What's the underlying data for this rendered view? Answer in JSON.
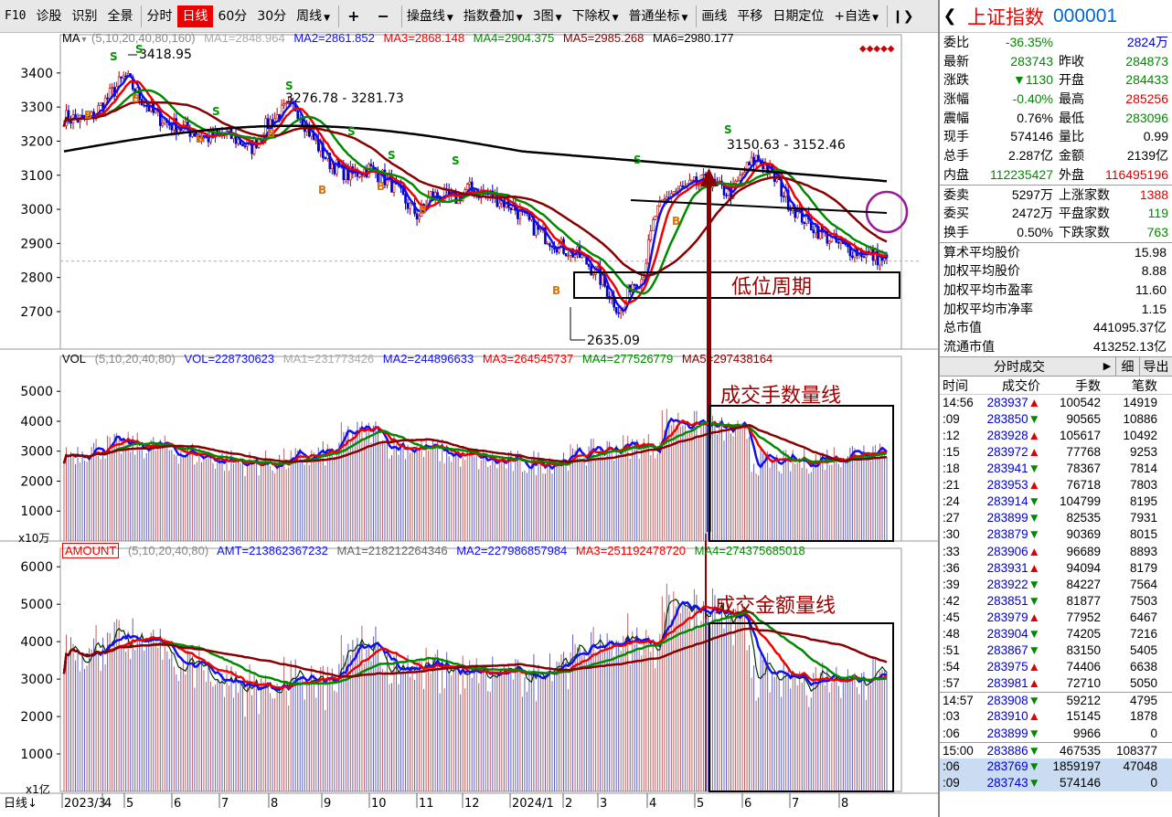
{
  "toolbar": {
    "items": [
      {
        "label": "F10",
        "kind": "f10"
      },
      {
        "label": "诊股"
      },
      {
        "label": "识别"
      },
      {
        "label": "全景"
      },
      {
        "label": "分时",
        "sep": true
      },
      {
        "label": "日线",
        "active": true
      },
      {
        "label": "60分"
      },
      {
        "label": "30分"
      },
      {
        "label": "周线",
        "dropdown": true
      },
      {
        "label": "+",
        "sym": true,
        "sep": true
      },
      {
        "label": "−",
        "sym": true
      },
      {
        "label": "操盘线",
        "dropdown": true,
        "sep": true
      },
      {
        "label": "指数叠加",
        "dropdown": true
      },
      {
        "label": "3图",
        "dropdown": true
      },
      {
        "label": "下除权",
        "dropdown": true
      },
      {
        "label": "普通坐标",
        "dropdown": true
      },
      {
        "label": "画线",
        "sep": true
      },
      {
        "label": "平移"
      },
      {
        "label": "日期定位"
      },
      {
        "label": "+自选",
        "dropdown": true
      },
      {
        "label": "❙❯",
        "sep": true
      }
    ]
  },
  "colors": {
    "ma1": "#d7d7d7",
    "ma2": "#1010f0",
    "ma3": "#f00000",
    "ma4": "#008a00",
    "ma5": "#880000",
    "ma6": "#000000",
    "up": "#b00000",
    "down": "#0000c8",
    "annot": "#8b0000"
  },
  "price_panel": {
    "header": {
      "name": "MA",
      "params": "(5,10,20,40,80,160)",
      "ma1": "MA1=2848.964",
      "ma2": "MA2=2861.852",
      "ma3": "MA3=2868.148",
      "ma4": "MA4=2904.375",
      "ma5": "MA5=2985.268",
      "ma6": "MA6=2980.177"
    },
    "y_ticks": [
      "3400",
      "3300",
      "3200",
      "3100",
      "3000",
      "2900",
      "2800",
      "2700"
    ],
    "y_range": [
      2590,
      3480
    ],
    "labels": {
      "high1": "3418.95",
      "high2": "3276.78 - 3281.73",
      "high3": "3150.63 - 3152.46",
      "low": "2635.09"
    },
    "annotation": "低位周期"
  },
  "volume_panel": {
    "header": {
      "name": "VOL",
      "params": "(5,10,20,40,80)",
      "vol": "VOL=228730623",
      "ma1": "MA1=231773426",
      "ma2": "MA2=244896633",
      "ma3": "MA3=264545737",
      "ma4": "MA4=277526779",
      "ma5": "MA5=297438164"
    },
    "y_ticks": [
      "5000",
      "4000",
      "3000",
      "2000",
      "1000"
    ],
    "unit": "x10万",
    "annotation": "成交手数量线"
  },
  "amount_panel": {
    "header": {
      "name": "AMOUNT",
      "params": "(5,10,20,40,80)",
      "amt": "AMT=213862367232",
      "ma1": "MA1=218212264346",
      "ma2": "MA2=227986857984",
      "ma3": "MA3=251192478720",
      "ma4": "MA4=274375685018"
    },
    "y_ticks": [
      "6000",
      "5000",
      "4000",
      "3000",
      "2000",
      "1000"
    ],
    "unit": "x1亿",
    "annotation": "成交金额量线"
  },
  "x_axis": {
    "period": "日线",
    "labels": [
      "2023/3",
      "4",
      "5",
      "6",
      "7",
      "8",
      "9",
      "10",
      "11",
      "12",
      "2024/1",
      "2",
      "3",
      "4",
      "5",
      "6",
      "7",
      "8"
    ]
  },
  "quote": {
    "title": "上证指数",
    "code": "000001",
    "rows": [
      [
        {
          "k": "委比",
          "v": "-36.35%",
          "c": "green"
        },
        {
          "k": "",
          "v": "2824万",
          "c": "blue"
        }
      ],
      [
        {
          "k": "最新",
          "v": "283743",
          "c": "green"
        },
        {
          "k": "昨收",
          "v": "284873",
          "c": "green"
        }
      ],
      [
        {
          "k": "涨跌",
          "v": "▼1130",
          "c": "green"
        },
        {
          "k": "开盘",
          "v": "284433",
          "c": "green"
        }
      ],
      [
        {
          "k": "涨幅",
          "v": "-0.40%",
          "c": "green"
        },
        {
          "k": "最高",
          "v": "285256",
          "c": "red"
        }
      ],
      [
        {
          "k": "震幅",
          "v": "0.76%",
          "c": ""
        },
        {
          "k": "最低",
          "v": "283096",
          "c": "green"
        }
      ],
      [
        {
          "k": "现手",
          "v": "574146",
          "c": ""
        },
        {
          "k": "量比",
          "v": "0.99",
          "c": ""
        }
      ],
      [
        {
          "k": "总手",
          "v": "2.287亿",
          "c": ""
        },
        {
          "k": "金额",
          "v": "2139亿",
          "c": ""
        }
      ],
      [
        {
          "k": "内盘",
          "v": "112235427",
          "c": "green"
        },
        {
          "k": "外盘",
          "v": "116495196",
          "c": "red"
        }
      ]
    ],
    "rows2": [
      [
        {
          "k": "委卖",
          "v": "5297万",
          "c": ""
        },
        {
          "k": "上涨家数",
          "v": "1388",
          "c": "red"
        }
      ],
      [
        {
          "k": "委买",
          "v": "2472万",
          "c": ""
        },
        {
          "k": "平盘家数",
          "v": "119",
          "c": "green"
        }
      ],
      [
        {
          "k": "换手",
          "v": "0.50%",
          "c": ""
        },
        {
          "k": "下跌家数",
          "v": "763",
          "c": "green"
        }
      ]
    ],
    "stats": [
      {
        "k": "算术平均股价",
        "v": "15.98"
      },
      {
        "k": "加权平均股价",
        "v": "8.88"
      },
      {
        "k": "加权平均市盈率",
        "v": "11.60"
      },
      {
        "k": "加权平均市净率",
        "v": "1.15"
      },
      {
        "k": "总市值",
        "v": "441095.37亿"
      },
      {
        "k": "流通市值",
        "v": "413252.13亿"
      }
    ]
  },
  "trades": {
    "tab": "分时成交",
    "tab_arrow": "▶",
    "btn_detail": "细",
    "btn_export": "导出",
    "headers": [
      "时间",
      "成交价",
      "手数",
      "笔数"
    ],
    "rows": [
      {
        "t": "14:56",
        "p": "283937",
        "d": "▲",
        "v": "100542",
        "n": "14919"
      },
      {
        "t": ":09",
        "p": "283850",
        "d": "▼",
        "v": "90565",
        "n": "10886"
      },
      {
        "t": ":12",
        "p": "283928",
        "d": "▲",
        "v": "105617",
        "n": "10492"
      },
      {
        "t": ":15",
        "p": "283972",
        "d": "▲",
        "v": "77768",
        "n": "9253"
      },
      {
        "t": ":18",
        "p": "283941",
        "d": "▼",
        "v": "78367",
        "n": "7814"
      },
      {
        "t": ":21",
        "p": "283953",
        "d": "▲",
        "v": "76718",
        "n": "7803"
      },
      {
        "t": ":24",
        "p": "283914",
        "d": "▼",
        "v": "104799",
        "n": "8195"
      },
      {
        "t": ":27",
        "p": "283899",
        "d": "▼",
        "v": "82535",
        "n": "7931"
      },
      {
        "t": ":30",
        "p": "283879",
        "d": "▼",
        "v": "90369",
        "n": "8015"
      },
      {
        "t": ":33",
        "p": "283906",
        "d": "▲",
        "v": "96689",
        "n": "8893"
      },
      {
        "t": ":36",
        "p": "283931",
        "d": "▲",
        "v": "94094",
        "n": "8179"
      },
      {
        "t": ":39",
        "p": "283922",
        "d": "▼",
        "v": "84227",
        "n": "7564"
      },
      {
        "t": ":42",
        "p": "283851",
        "d": "▼",
        "v": "81877",
        "n": "7503"
      },
      {
        "t": ":45",
        "p": "283979",
        "d": "▲",
        "v": "77952",
        "n": "6467"
      },
      {
        "t": ":48",
        "p": "283904",
        "d": "▼",
        "v": "74205",
        "n": "7216"
      },
      {
        "t": ":51",
        "p": "283867",
        "d": "▼",
        "v": "83150",
        "n": "5405"
      },
      {
        "t": ":54",
        "p": "283975",
        "d": "▲",
        "v": "74406",
        "n": "6638"
      },
      {
        "t": ":57",
        "p": "283981",
        "d": "▲",
        "v": "72710",
        "n": "5050"
      },
      {
        "t": "14:57",
        "p": "283908",
        "d": "▼",
        "v": "59212",
        "n": "4795",
        "sep": true
      },
      {
        "t": ":03",
        "p": "283910",
        "d": "▲",
        "v": "15145",
        "n": "1878"
      },
      {
        "t": ":06",
        "p": "283899",
        "d": "▼",
        "v": "9966",
        "n": "0"
      },
      {
        "t": "15:00",
        "p": "283886",
        "d": "▼",
        "v": "467535",
        "n": "108377",
        "sep": true
      },
      {
        "t": ":06",
        "p": "283769",
        "d": "▼",
        "v": "1859197",
        "n": "47048",
        "hl": true
      },
      {
        "t": ":09",
        "p": "283743",
        "d": "▼",
        "v": "574146",
        "n": "0",
        "hl": true
      }
    ]
  }
}
